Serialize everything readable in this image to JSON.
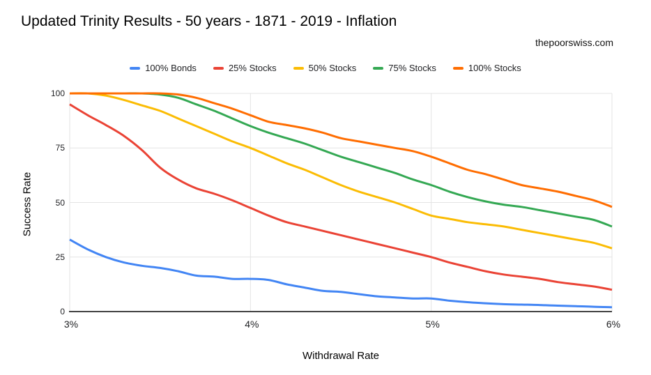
{
  "page": {
    "title": "Updated Trinity Results - 50 years - 1871 - 2019 - Inflation",
    "attribution": "thepoorswiss.com"
  },
  "chart_data": {
    "type": "line",
    "title": "Updated Trinity Results - 50 years - 1871 - 2019 - Inflation",
    "xlabel": "Withdrawal Rate",
    "ylabel": "Success Rate",
    "xlim": [
      3,
      6
    ],
    "ylim": [
      0,
      100
    ],
    "grid": true,
    "legend_position": "top",
    "x_ticks": [
      {
        "value": 3,
        "label": "3%"
      },
      {
        "value": 4,
        "label": "4%"
      },
      {
        "value": 5,
        "label": "5%"
      },
      {
        "value": 6,
        "label": "6%"
      }
    ],
    "y_ticks": [
      {
        "value": 0,
        "label": "0"
      },
      {
        "value": 25,
        "label": "25"
      },
      {
        "value": 50,
        "label": "50"
      },
      {
        "value": 75,
        "label": "75"
      },
      {
        "value": 100,
        "label": "100"
      }
    ],
    "x": [
      3.0,
      3.1,
      3.2,
      3.3,
      3.4,
      3.5,
      3.6,
      3.7,
      3.8,
      3.9,
      4.0,
      4.1,
      4.2,
      4.3,
      4.4,
      4.5,
      4.6,
      4.7,
      4.8,
      4.9,
      5.0,
      5.1,
      5.2,
      5.3,
      5.4,
      5.5,
      5.6,
      5.7,
      5.8,
      5.9,
      6.0
    ],
    "series": [
      {
        "name": "100% Bonds",
        "color": "#4285F4",
        "values": [
          33,
          28.5,
          25,
          22.5,
          21,
          20,
          18.5,
          16.5,
          16,
          15,
          15,
          14.5,
          12.5,
          11,
          9.5,
          9,
          8,
          7,
          6.5,
          6,
          6,
          5,
          4.3,
          3.8,
          3.4,
          3.2,
          3,
          2.7,
          2.5,
          2.2,
          2
        ]
      },
      {
        "name": "25% Stocks",
        "color": "#EA4335",
        "values": [
          95,
          90,
          85.5,
          80.5,
          74,
          66,
          60.5,
          56.5,
          54,
          51,
          47.5,
          44,
          41,
          39,
          37,
          35,
          33,
          31,
          29,
          27,
          25,
          22.5,
          20.5,
          18.5,
          17,
          16,
          15,
          13.5,
          12.5,
          11.5,
          10
        ]
      },
      {
        "name": "50% Stocks",
        "color": "#FBBC04",
        "values": [
          100,
          100,
          99,
          97,
          94.5,
          92,
          88.5,
          85,
          81.5,
          78,
          75,
          71.5,
          68,
          65,
          61.5,
          58,
          55,
          52.5,
          50,
          47,
          44,
          42.5,
          41,
          40,
          39,
          37.5,
          36,
          34.5,
          33,
          31.5,
          29
        ]
      },
      {
        "name": "75% Stocks",
        "color": "#34A853",
        "values": [
          100,
          100,
          100,
          100,
          100,
          99.5,
          98,
          95,
          92,
          88.5,
          85,
          82,
          79.5,
          77,
          74,
          71,
          68.5,
          66,
          63.5,
          60.5,
          58,
          55,
          52.5,
          50.5,
          49,
          48,
          46.5,
          45,
          43.5,
          42,
          39
        ]
      },
      {
        "name": "100% Stocks",
        "color": "#FF6D01",
        "values": [
          100,
          100,
          100,
          100,
          100,
          100,
          99.5,
          98,
          95.5,
          93,
          90,
          87,
          85.5,
          84,
          82,
          79.5,
          78,
          76.5,
          75,
          73.5,
          71,
          68,
          65,
          63,
          60.5,
          58,
          56.5,
          55,
          53,
          51,
          48
        ]
      }
    ],
    "colors": {
      "grid": "#e3e3e3",
      "axis": "#424242",
      "background": "#ffffff"
    }
  }
}
